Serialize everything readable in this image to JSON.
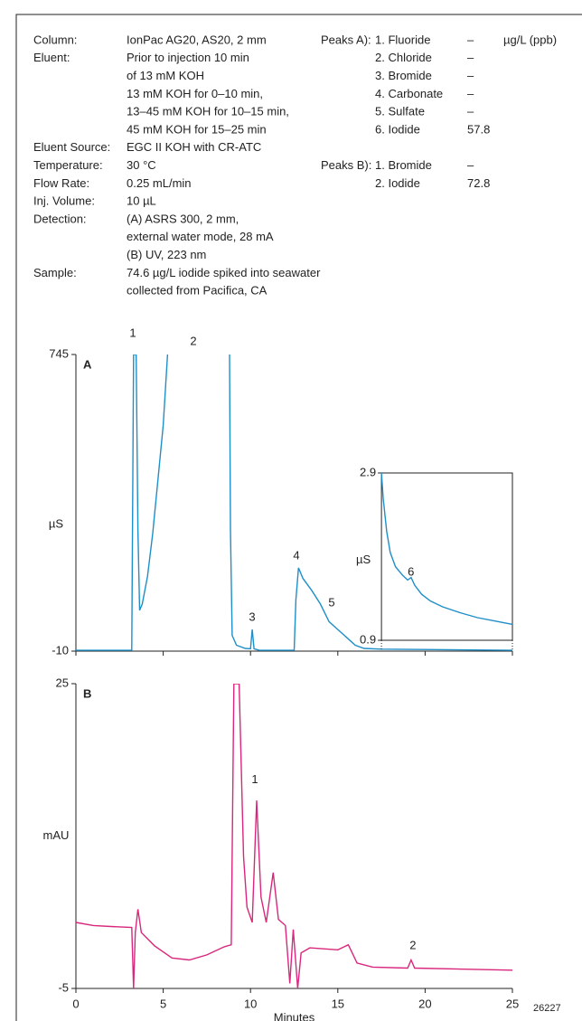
{
  "conditions": [
    {
      "label": "Column:",
      "lines": [
        "IonPac AG20, AS20, 2 mm"
      ]
    },
    {
      "label": "Eluent:",
      "lines": [
        "Prior to injection 10 min",
        "of 13 mM KOH",
        "13 mM KOH for 0–10 min,",
        "13–45 mM KOH for 10–15 min,",
        "45 mM KOH for 15–25 min"
      ]
    },
    {
      "label": "Eluent Source:",
      "lines": [
        "EGC II KOH  with CR-ATC"
      ]
    },
    {
      "label": "Temperature:",
      "lines": [
        "30 °C"
      ]
    },
    {
      "label": "Flow Rate:",
      "lines": [
        "0.25 mL/min"
      ]
    },
    {
      "label": "Inj. Volume:",
      "lines": [
        "10 µL"
      ]
    },
    {
      "label": "Detection:",
      "lines": [
        "(A) ASRS 300, 2 mm,",
        "external water mode, 28 mA",
        "(B) UV, 223 nm"
      ]
    },
    {
      "label": "Sample:",
      "lines": [
        "74.6 µg/L iodide spiked into seawater",
        "collected from Pacifica, CA"
      ]
    }
  ],
  "peaks": [
    {
      "label": "Peaks A):",
      "unit": "µg/L (ppb)",
      "items": [
        {
          "name": "1. Fluoride",
          "value": "–"
        },
        {
          "name": "2. Chloride",
          "value": "–"
        },
        {
          "name": "3. Bromide",
          "value": "–"
        },
        {
          "name": "4. Carbonate",
          "value": "–"
        },
        {
          "name": "5. Sulfate",
          "value": "–"
        },
        {
          "name": "6. Iodide",
          "value": 57.8
        }
      ]
    },
    {
      "label": "Peaks B):",
      "items": [
        {
          "name": "1. Bromide",
          "value": "–"
        },
        {
          "name": "2. Iodide",
          "value": 72.8
        }
      ]
    }
  ],
  "figure_id": "26227",
  "chart_data": [
    {
      "type": "line",
      "panel": "A",
      "ylabel": "µS",
      "color": "#1f8fc8",
      "xlim": [
        0,
        25
      ],
      "xticks": [
        0,
        5,
        10,
        15,
        20,
        25
      ],
      "ylim": [
        -10,
        745
      ],
      "yticks": [
        -10,
        745
      ],
      "x": [
        0,
        3.2,
        3.3,
        3.45,
        3.55,
        3.65,
        3.8,
        4.1,
        4.4,
        4.7,
        5.0,
        5.25,
        7.0,
        8.8,
        8.85,
        8.95,
        9.2,
        9.7,
        10.0,
        10.1,
        10.2,
        10.5,
        12.5,
        12.6,
        12.75,
        13.0,
        13.5,
        14.0,
        14.5,
        15.0,
        15.5,
        16.0,
        16.5,
        17.5,
        25
      ],
      "series": [
        {
          "values": [
            -8,
            -8,
            745,
            745,
            300,
            94,
            110,
            180,
            290,
            427,
            565,
            745,
            null,
            745,
            300,
            30,
            5,
            -3,
            -4,
            45,
            -4,
            -8,
            -8,
            120,
            202,
            175,
            145,
            110,
            65,
            45,
            25,
            5,
            -3,
            -5,
            -8
          ]
        }
      ],
      "annotations": [
        {
          "text": "1",
          "x": 3.26,
          "y": 798
        },
        {
          "text": "2",
          "x": 6.73,
          "y": 777
        },
        {
          "text": "3",
          "x": 10.09,
          "y": 75
        },
        {
          "text": "4",
          "x": 12.63,
          "y": 232
        },
        {
          "text": "5",
          "x": 14.65,
          "y": 112
        }
      ],
      "inset": {
        "type": "line",
        "ylabel": "µS",
        "xlim": [
          17.5,
          25
        ],
        "ylim": [
          0.9,
          2.9
        ],
        "yticks": [
          0.9,
          2.9
        ],
        "x": [
          17.5,
          17.6,
          17.8,
          18.0,
          18.3,
          18.7,
          19.0,
          19.2,
          19.4,
          19.8,
          20.3,
          21,
          22,
          23,
          24,
          25
        ],
        "values": [
          2.9,
          2.6,
          2.2,
          1.95,
          1.78,
          1.68,
          1.62,
          1.65,
          1.56,
          1.45,
          1.37,
          1.3,
          1.23,
          1.17,
          1.13,
          1.09
        ],
        "annotations": [
          {
            "text": "6",
            "x": 19.19,
            "y": 1.71
          }
        ]
      }
    },
    {
      "type": "line",
      "panel": "B",
      "ylabel": "mAU",
      "xlabel": "Minutes",
      "color": "#d8277c",
      "xlim": [
        0,
        25
      ],
      "xticks": [
        0,
        5,
        10,
        15,
        20,
        25
      ],
      "ylim": [
        -5,
        25
      ],
      "yticks": [
        -5,
        25
      ],
      "x": [
        0,
        1,
        2,
        3.2,
        3.3,
        3.4,
        3.55,
        3.75,
        4.5,
        5.5,
        6.5,
        7.5,
        8.5,
        8.9,
        9.05,
        9.35,
        9.6,
        9.8,
        10.1,
        10.35,
        10.6,
        10.9,
        11.3,
        11.6,
        12.0,
        12.25,
        12.45,
        12.7,
        12.9,
        13.4,
        15.0,
        15.6,
        16.1,
        17,
        19,
        19.2,
        19.4,
        25
      ],
      "series": [
        {
          "values": [
            1.5,
            1.2,
            1.1,
            1.0,
            -5,
            0.5,
            2.8,
            0.5,
            -0.8,
            -2.0,
            -2.2,
            -1.7,
            -0.9,
            -0.7,
            25,
            25,
            8,
            3,
            1.5,
            13.5,
            4,
            1.5,
            6.4,
            1.8,
            1.2,
            -4.5,
            0.8,
            -5,
            -1.5,
            -1.0,
            -1.2,
            -0.7,
            -2.5,
            -2.9,
            -3.0,
            -2.2,
            -3.0,
            -3.2
          ]
        }
      ],
      "annotations": [
        {
          "text": "1",
          "x": 10.25,
          "y": 15.5
        },
        {
          "text": "2",
          "x": 19.3,
          "y": -0.8
        }
      ]
    }
  ]
}
